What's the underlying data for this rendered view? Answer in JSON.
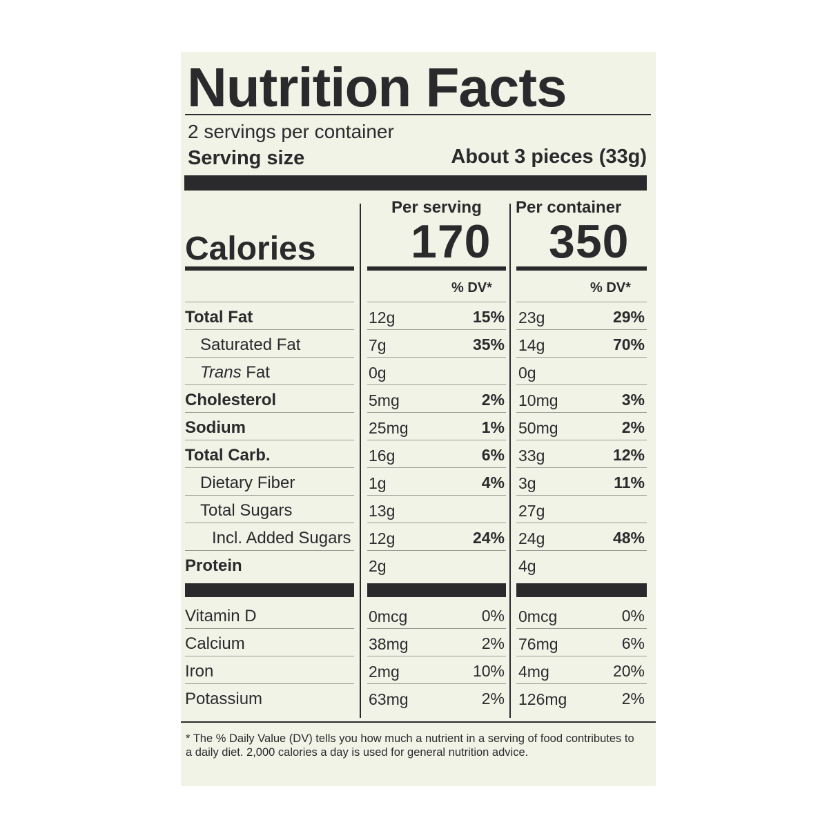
{
  "title": "Nutrition Facts",
  "servings_per_container": "2 servings per container",
  "serving_size_label": "Serving size",
  "serving_size_value": "About 3 pieces (33g)",
  "per_serving_label": "Per serving",
  "per_container_label": "Per container",
  "calories_label": "Calories",
  "calories_per_serving": "170",
  "calories_per_container": "350",
  "dv_header": "% DV*",
  "nutrients": [
    {
      "label": "Total Fat",
      "bold": true,
      "indent": 0,
      "serving_amount": "12g",
      "serving_dv": "15%",
      "container_amount": "23g",
      "container_dv": "29%"
    },
    {
      "label": "Saturated Fat",
      "bold": false,
      "indent": 1,
      "serving_amount": "7g",
      "serving_dv": "35%",
      "container_amount": "14g",
      "container_dv": "70%"
    },
    {
      "label_italic": "Trans",
      "label": " Fat",
      "bold": false,
      "indent": 1,
      "serving_amount": "0g",
      "serving_dv": "",
      "container_amount": "0g",
      "container_dv": ""
    },
    {
      "label": "Cholesterol",
      "bold": true,
      "indent": 0,
      "serving_amount": "5mg",
      "serving_dv": "2%",
      "container_amount": "10mg",
      "container_dv": "3%"
    },
    {
      "label": "Sodium",
      "bold": true,
      "indent": 0,
      "serving_amount": "25mg",
      "serving_dv": "1%",
      "container_amount": "50mg",
      "container_dv": "2%"
    },
    {
      "label": "Total Carb.",
      "bold": true,
      "indent": 0,
      "serving_amount": "16g",
      "serving_dv": "6%",
      "container_amount": "33g",
      "container_dv": "12%"
    },
    {
      "label": "Dietary Fiber",
      "bold": false,
      "indent": 1,
      "serving_amount": "1g",
      "serving_dv": "4%",
      "container_amount": "3g",
      "container_dv": "11%"
    },
    {
      "label": "Total Sugars",
      "bold": false,
      "indent": 1,
      "serving_amount": "13g",
      "serving_dv": "",
      "container_amount": "27g",
      "container_dv": ""
    },
    {
      "label": "Incl. Added Sugars",
      "bold": false,
      "indent": 2,
      "serving_amount": "12g",
      "serving_dv": "24%",
      "container_amount": "24g",
      "container_dv": "48%"
    },
    {
      "label": "Protein",
      "bold": true,
      "indent": 0,
      "serving_amount": "2g",
      "serving_dv": "",
      "container_amount": "4g",
      "container_dv": ""
    }
  ],
  "vitamins": [
    {
      "label": "Vitamin D",
      "serving_amount": "0mcg",
      "serving_dv": "0%",
      "container_amount": "0mcg",
      "container_dv": "0%"
    },
    {
      "label": "Calcium",
      "serving_amount": "38mg",
      "serving_dv": "2%",
      "container_amount": "76mg",
      "container_dv": "6%"
    },
    {
      "label": "Iron",
      "serving_amount": "2mg",
      "serving_dv": "10%",
      "container_amount": "4mg",
      "container_dv": "20%"
    },
    {
      "label": "Potassium",
      "serving_amount": "63mg",
      "serving_dv": "2%",
      "container_amount": "126mg",
      "container_dv": "2%"
    }
  ],
  "footnote": "* The % Daily Value (DV) tells you how much a nutrient in a serving of food contributes to a daily diet. 2,000 calories a day is used for general nutrition advice."
}
